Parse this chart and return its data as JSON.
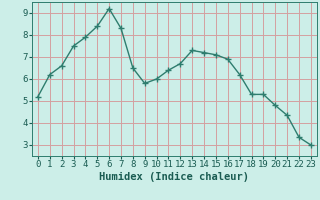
{
  "xlabel": "Humidex (Indice chaleur)",
  "x": [
    0,
    1,
    2,
    3,
    4,
    5,
    6,
    7,
    8,
    9,
    10,
    11,
    12,
    13,
    14,
    15,
    16,
    17,
    18,
    19,
    20,
    21,
    22,
    23
  ],
  "y": [
    5.2,
    6.2,
    6.6,
    7.5,
    7.9,
    8.4,
    9.2,
    8.3,
    6.5,
    5.8,
    6.0,
    6.4,
    6.7,
    7.3,
    7.2,
    7.1,
    6.9,
    6.2,
    5.3,
    5.3,
    4.8,
    4.35,
    3.35,
    3.0
  ],
  "ylim": [
    2.5,
    9.5
  ],
  "xlim": [
    -0.5,
    23.5
  ],
  "yticks": [
    3,
    4,
    5,
    6,
    7,
    8,
    9
  ],
  "xticks": [
    0,
    1,
    2,
    3,
    4,
    5,
    6,
    7,
    8,
    9,
    10,
    11,
    12,
    13,
    14,
    15,
    16,
    17,
    18,
    19,
    20,
    21,
    22,
    23
  ],
  "line_color": "#2e7d6e",
  "marker": "+",
  "marker_size": 4,
  "bg_color": "#cceee8",
  "grid_color": "#d4a0a0",
  "axis_color": "#2e7d6e",
  "label_color": "#1a5c52",
  "tick_label_fontsize": 6.5,
  "xlabel_fontsize": 7.5
}
